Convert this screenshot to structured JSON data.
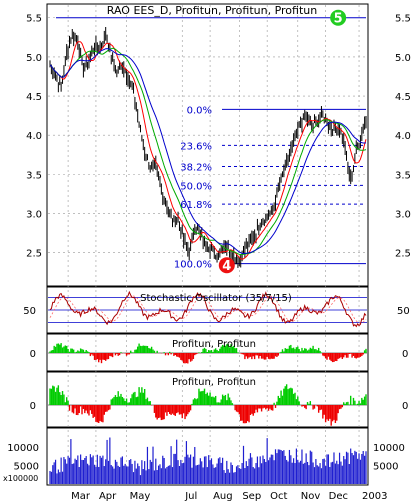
{
  "chart_data": {
    "type": "line",
    "title": "RAO EES_D, Profitun, Profitun, Profitun",
    "x_labels": [
      "Mar",
      "Apr",
      "May",
      "Jul",
      "Aug",
      "Sep",
      "Oct",
      "Nov",
      "Dec",
      "2003"
    ],
    "x_label_days": [
      13,
      33,
      55,
      95,
      115,
      136,
      156,
      178,
      198,
      222
    ],
    "price_panel": {
      "yticks": [
        "5.5",
        "5.0",
        "4.5",
        "4.0",
        "3.5",
        "3.0",
        "2.5"
      ],
      "ylim": [
        2.1,
        5.65
      ],
      "price_keys": [
        [
          0,
          4.9
        ],
        [
          4,
          4.75
        ],
        [
          8,
          4.6
        ],
        [
          12,
          5.05
        ],
        [
          16,
          5.3
        ],
        [
          20,
          5.2
        ],
        [
          24,
          4.85
        ],
        [
          28,
          4.95
        ],
        [
          32,
          5.15
        ],
        [
          36,
          5.1
        ],
        [
          40,
          5.3
        ],
        [
          44,
          5.0
        ],
        [
          48,
          4.8
        ],
        [
          52,
          4.9
        ],
        [
          56,
          4.75
        ],
        [
          60,
          4.55
        ],
        [
          64,
          4.15
        ],
        [
          68,
          3.8
        ],
        [
          72,
          3.6
        ],
        [
          76,
          3.6
        ],
        [
          80,
          3.3
        ],
        [
          84,
          3.1
        ],
        [
          88,
          2.9
        ],
        [
          92,
          2.95
        ],
        [
          96,
          2.65
        ],
        [
          100,
          2.5
        ],
        [
          104,
          2.85
        ],
        [
          108,
          2.75
        ],
        [
          112,
          2.6
        ],
        [
          116,
          2.55
        ],
        [
          120,
          2.45
        ],
        [
          124,
          2.6
        ],
        [
          128,
          2.55
        ],
        [
          132,
          2.45
        ],
        [
          136,
          2.38
        ],
        [
          140,
          2.55
        ],
        [
          144,
          2.65
        ],
        [
          148,
          2.75
        ],
        [
          152,
          2.9
        ],
        [
          156,
          2.95
        ],
        [
          160,
          3.05
        ],
        [
          164,
          3.3
        ],
        [
          168,
          3.55
        ],
        [
          172,
          3.75
        ],
        [
          176,
          3.95
        ],
        [
          180,
          4.15
        ],
        [
          184,
          4.25
        ],
        [
          188,
          4.1
        ],
        [
          192,
          4.2
        ],
        [
          196,
          4.25
        ],
        [
          200,
          4.15
        ],
        [
          204,
          4.05
        ],
        [
          208,
          4.1
        ],
        [
          212,
          3.85
        ],
        [
          214,
          3.6
        ],
        [
          216,
          3.45
        ],
        [
          218,
          3.6
        ],
        [
          220,
          3.8
        ],
        [
          223,
          3.95
        ],
        [
          226,
          4.15
        ]
      ],
      "ma_periods": [
        9,
        18,
        27
      ],
      "ma_colors": [
        "#ff0000",
        "#00aa00",
        "#0000cc"
      ],
      "fib_levels": [
        {
          "label": "0.0%",
          "value": 4.33
        },
        {
          "label": "23.6%",
          "value": 3.87
        },
        {
          "label": "38.2%",
          "value": 3.6
        },
        {
          "label": "50.0%",
          "value": 3.36
        },
        {
          "label": "61.8%",
          "value": 3.12
        },
        {
          "label": "100.0%",
          "value": 2.36
        }
      ],
      "markers": [
        {
          "text": "5",
          "day": 207,
          "price": 5.5,
          "color": "#22cc22"
        },
        {
          "text": "4",
          "day": 127,
          "price": 2.34,
          "color": "#ee1111"
        }
      ]
    },
    "stochastic_panel": {
      "label": "Stochastic Oscillator (35/7/15)",
      "yticks": [
        "50"
      ],
      "ylim": [
        0,
        100
      ],
      "levels": [
        20,
        50,
        80
      ]
    },
    "profitun_panel_1": {
      "label": "Profitun, Profitun",
      "yticks": [
        "0"
      ]
    },
    "profitun_panel_2": {
      "label": "Profitun, Profitun",
      "yticks": [
        "0"
      ]
    },
    "volume_panel": {
      "unit_label": "x100000",
      "yticks": [
        "10000",
        "5000"
      ],
      "ylim": [
        0,
        14500
      ]
    },
    "grid": true,
    "legend": "none"
  }
}
